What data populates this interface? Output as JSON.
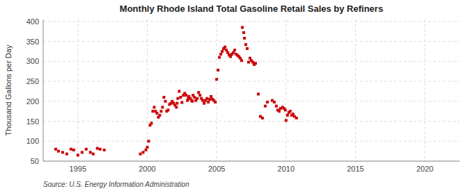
{
  "chart_data": {
    "type": "scatter",
    "title": "Monthly Rhode Island Total Gasoline Retail Sales by Refiners",
    "ylabel": "Thousand Gallons per Day",
    "source": "Source: U.S. Energy Information Administration",
    "color": "#cc0000",
    "marker": "square",
    "grid": true,
    "xlim": [
      1992.5,
      2022.5
    ],
    "ylim": [
      50,
      405
    ],
    "xticks": [
      1995,
      2000,
      2005,
      2010,
      2015,
      2020
    ],
    "yticks": [
      50,
      100,
      150,
      200,
      250,
      300,
      350,
      400
    ],
    "x": [
      1993.4,
      1993.6,
      1993.9,
      1994.2,
      1994.5,
      1994.7,
      1995.0,
      1995.3,
      1995.6,
      1995.9,
      1996.1,
      1996.4,
      1996.6,
      1996.9,
      1999.5,
      1999.7,
      1999.9,
      2000.0,
      2000.1,
      2000.2,
      2000.3,
      2000.4,
      2000.5,
      2000.6,
      2000.7,
      2000.8,
      2000.9,
      2001.0,
      2001.1,
      2001.2,
      2001.3,
      2001.4,
      2001.5,
      2001.6,
      2001.7,
      2001.8,
      2001.9,
      2002.0,
      2002.1,
      2002.15,
      2002.2,
      2002.3,
      2002.4,
      2002.5,
      2002.6,
      2002.7,
      2002.8,
      2002.9,
      2002.95,
      2003.0,
      2003.1,
      2003.2,
      2003.25,
      2003.3,
      2003.4,
      2003.5,
      2003.6,
      2003.7,
      2003.8,
      2003.9,
      2004.0,
      2004.1,
      2004.2,
      2004.3,
      2004.4,
      2004.5,
      2004.6,
      2004.7,
      2004.8,
      2004.9,
      2005.0,
      2005.1,
      2005.2,
      2005.3,
      2005.4,
      2005.5,
      2005.6,
      2005.7,
      2005.8,
      2005.9,
      2006.0,
      2006.1,
      2006.2,
      2006.3,
      2006.4,
      2006.5,
      2006.6,
      2006.7,
      2006.8,
      2006.85,
      2006.95,
      2007.0,
      2007.1,
      2007.2,
      2007.3,
      2007.4,
      2007.5,
      2007.6,
      2007.7,
      2007.8,
      2008.0,
      2008.15,
      2008.3,
      2008.5,
      2008.65,
      2009.0,
      2009.15,
      2009.3,
      2009.4,
      2009.5,
      2009.6,
      2009.75,
      2009.85,
      2009.95,
      2010.0,
      2010.1,
      2010.2,
      2010.3,
      2010.4,
      2010.5,
      2010.6,
      2010.75
    ],
    "values": [
      80,
      75,
      72,
      68,
      80,
      78,
      65,
      72,
      80,
      72,
      68,
      82,
      80,
      78,
      68,
      72,
      78,
      85,
      100,
      140,
      145,
      175,
      185,
      175,
      170,
      160,
      165,
      175,
      185,
      210,
      200,
      175,
      178,
      192,
      195,
      200,
      195,
      190,
      185,
      195,
      207,
      225,
      210,
      197,
      215,
      220,
      215,
      202,
      207,
      212,
      207,
      202,
      200,
      215,
      210,
      202,
      207,
      222,
      215,
      207,
      202,
      195,
      202,
      207,
      198,
      205,
      212,
      205,
      202,
      198,
      255,
      278,
      310,
      318,
      325,
      332,
      336,
      328,
      322,
      316,
      312,
      318,
      322,
      328,
      318,
      315,
      312,
      308,
      302,
      385,
      372,
      358,
      342,
      332,
      298,
      308,
      302,
      298,
      292,
      295,
      218,
      162,
      158,
      188,
      198,
      202,
      198,
      188,
      178,
      175,
      182,
      185,
      182,
      178,
      152,
      165,
      172,
      175,
      165,
      168,
      162,
      158
    ]
  }
}
